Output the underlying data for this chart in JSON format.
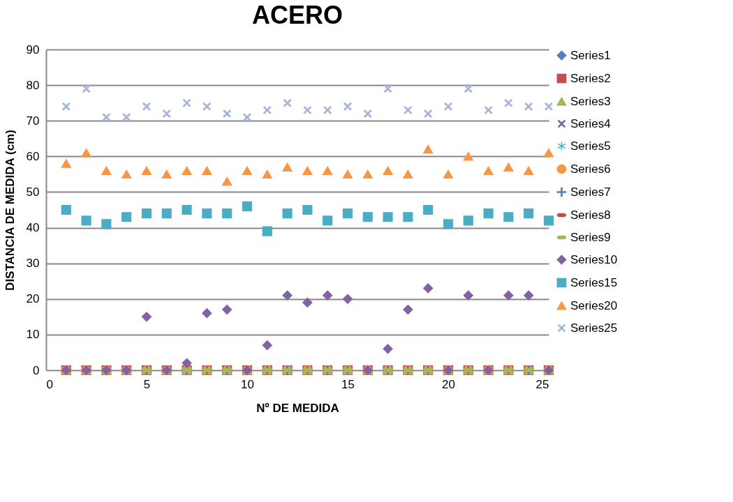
{
  "chart_data": {
    "type": "scatter",
    "title": "ACERO",
    "xlabel": "Nº DE MEDIDA",
    "ylabel": "DISTANCIA DE MEDIDA (cm)",
    "x": [
      1,
      2,
      3,
      4,
      5,
      6,
      7,
      8,
      9,
      10,
      11,
      12,
      13,
      14,
      15,
      16,
      17,
      18,
      19,
      20,
      21,
      22,
      23,
      24,
      25
    ],
    "xlim": [
      0,
      25
    ],
    "xticks": [
      0,
      5,
      10,
      15,
      20,
      25
    ],
    "ylim": [
      0,
      90
    ],
    "yticks": [
      0,
      10,
      20,
      30,
      40,
      50,
      60,
      70,
      80,
      90
    ],
    "grid": "y",
    "legend": "right",
    "series": [
      {
        "name": "Series1",
        "color": "#4f81bd",
        "marker": "diamond",
        "values": [
          null,
          null,
          null,
          null,
          null,
          null,
          null,
          null,
          null,
          null,
          null,
          null,
          null,
          null,
          null,
          null,
          null,
          null,
          null,
          null,
          null,
          null,
          null,
          null,
          null
        ]
      },
      {
        "name": "Series2",
        "color": "#c0504d",
        "marker": "square",
        "values": [
          0,
          0,
          0,
          0,
          0,
          0,
          0,
          0,
          0,
          0,
          0,
          0,
          0,
          0,
          0,
          0,
          0,
          0,
          0,
          0,
          0,
          0,
          0,
          0,
          0
        ]
      },
      {
        "name": "Series3",
        "color": "#9bbb59",
        "marker": "triangle",
        "values": [
          0,
          0,
          0,
          0,
          0,
          0,
          0,
          0,
          0,
          0,
          0,
          0,
          0,
          0,
          0,
          0,
          0,
          0,
          0,
          0,
          0,
          0,
          0,
          0,
          0
        ]
      },
      {
        "name": "Series4",
        "color": "#8064a2",
        "marker": "cross",
        "values": [
          null,
          null,
          null,
          null,
          null,
          null,
          null,
          null,
          null,
          null,
          null,
          null,
          null,
          null,
          null,
          null,
          null,
          null,
          null,
          null,
          null,
          null,
          null,
          null,
          null
        ]
      },
      {
        "name": "Series5",
        "color": "#4bacc6",
        "marker": "star",
        "values": [
          null,
          null,
          null,
          null,
          null,
          null,
          null,
          null,
          null,
          null,
          null,
          null,
          null,
          null,
          null,
          null,
          null,
          null,
          null,
          null,
          null,
          null,
          null,
          null,
          null
        ]
      },
      {
        "name": "Series6",
        "color": "#f79646",
        "marker": "circle",
        "values": [
          0,
          0,
          0,
          0,
          0,
          0,
          0,
          0,
          0,
          0,
          0,
          0,
          0,
          0,
          0,
          0,
          0,
          0,
          0,
          0,
          0,
          0,
          0,
          0,
          0
        ]
      },
      {
        "name": "Series7",
        "color": "#4f81bd",
        "marker": "plus",
        "values": [
          null,
          null,
          null,
          null,
          0,
          null,
          0,
          0,
          0,
          null,
          0,
          0,
          0,
          0,
          0,
          null,
          0,
          0,
          0,
          null,
          0,
          null,
          0,
          0,
          null
        ]
      },
      {
        "name": "Series8",
        "color": "#c0504d",
        "values": [
          null,
          null,
          null,
          null,
          null,
          null,
          null,
          null,
          null,
          null,
          null,
          null,
          null,
          null,
          null,
          null,
          null,
          null,
          null,
          null,
          null,
          null,
          null,
          null,
          null
        ]
      },
      {
        "name": "Series9",
        "color": "#9bbb59",
        "values": [
          null,
          null,
          null,
          null,
          0,
          null,
          0,
          0,
          0,
          null,
          0,
          0,
          0,
          0,
          0,
          null,
          0,
          0,
          0,
          null,
          0,
          null,
          0,
          0,
          null
        ]
      },
      {
        "name": "Series10",
        "color": "#8064a2",
        "marker": "diamond",
        "values": [
          0,
          0,
          0,
          0,
          15,
          0,
          2,
          16,
          17,
          0,
          7,
          21,
          19,
          21,
          20,
          0,
          6,
          17,
          23,
          0,
          21,
          0,
          21,
          21,
          0
        ]
      },
      {
        "name": "Series15",
        "color": "#4bacc6",
        "marker": "square",
        "values": [
          45,
          42,
          41,
          43,
          44,
          44,
          45,
          44,
          44,
          46,
          39,
          44,
          45,
          42,
          44,
          43,
          43,
          43,
          45,
          41,
          42,
          44,
          43,
          44,
          42
        ]
      },
      {
        "name": "Series20",
        "color": "#f79646",
        "marker": "triangle",
        "values": [
          58,
          61,
          56,
          55,
          56,
          55,
          56,
          56,
          53,
          56,
          55,
          57,
          56,
          56,
          55,
          55,
          56,
          55,
          62,
          55,
          60,
          56,
          57,
          56,
          61
        ]
      },
      {
        "name": "Series25",
        "color": "#a5b6d9",
        "marker": "cross",
        "values": [
          74,
          79,
          71,
          71,
          74,
          72,
          75,
          74,
          72,
          71,
          73,
          75,
          73,
          73,
          74,
          72,
          79,
          73,
          72,
          74,
          79,
          73,
          75,
          74,
          74
        ]
      }
    ]
  }
}
